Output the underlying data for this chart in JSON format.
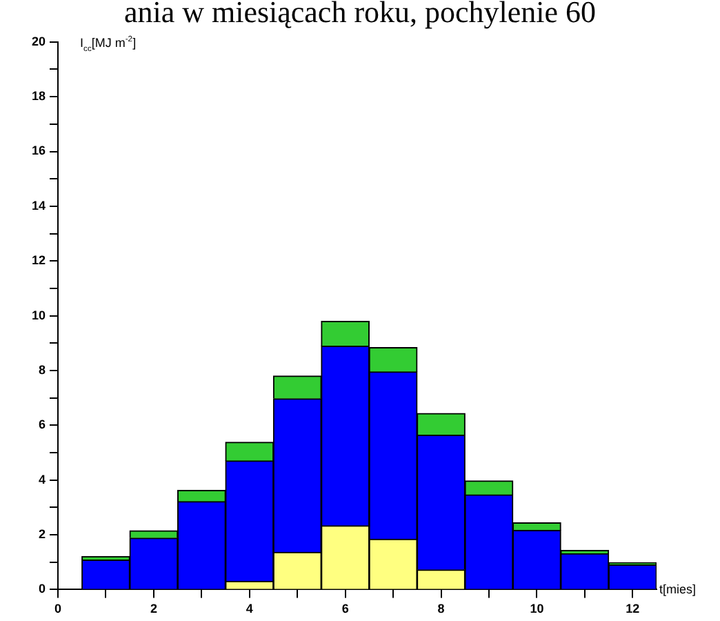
{
  "chart_data": {
    "type": "bar",
    "title": "ania w miesiącach roku, pochylenie 60",
    "ylabel": "I$_{cc}$[MJ m$^{-2}$]",
    "xlabel": "t[mies]",
    "x": [
      1,
      2,
      3,
      4,
      5,
      6,
      7,
      8,
      9,
      10,
      11,
      12
    ],
    "stacked": true,
    "legend": false,
    "grid": false,
    "xlim": [
      0,
      12.5
    ],
    "xticks": [
      0,
      {
        "value": 1,
        "label": null
      },
      2,
      {
        "value": 3,
        "label": null
      },
      4,
      {
        "value": 5,
        "label": null
      },
      6,
      {
        "value": 7,
        "label": null
      },
      8,
      {
        "value": 9,
        "label": null
      },
      10,
      {
        "value": 11,
        "label": null
      },
      12
    ],
    "ylim": [
      0,
      20
    ],
    "yticks": [
      0,
      {
        "value": 1,
        "label": null
      },
      2,
      {
        "value": 3,
        "label": null
      },
      4,
      {
        "value": 5,
        "label": null
      },
      6,
      {
        "value": 7,
        "label": null
      },
      8,
      {
        "value": 9,
        "label": null
      },
      10,
      {
        "value": 11,
        "label": null
      },
      12,
      {
        "value": 13,
        "label": null
      },
      14,
      {
        "value": 15,
        "label": null
      },
      16,
      {
        "value": 17,
        "label": null
      },
      18,
      {
        "value": 19,
        "label": null
      },
      20
    ],
    "series": [
      {
        "color": "#ffff80",
        "values": [
          0,
          null,
          0,
          0.3,
          1.36,
          2.33,
          1.84,
          0.72,
          null,
          0,
          0,
          0
        ]
      },
      {
        "color": "#0000ff",
        "values": [
          1.08,
          1.88,
          3.21,
          4.4,
          5.61,
          6.56,
          6.11,
          4.92,
          3.46,
          2.16,
          1.31,
          0.9
        ]
      },
      {
        "color": "#33cc33",
        "values": [
          0.13,
          0.27,
          0.41,
          0.68,
          0.83,
          0.91,
          0.89,
          0.79,
          0.51,
          0.28,
          0.12,
          0.08
        ]
      }
    ]
  }
}
